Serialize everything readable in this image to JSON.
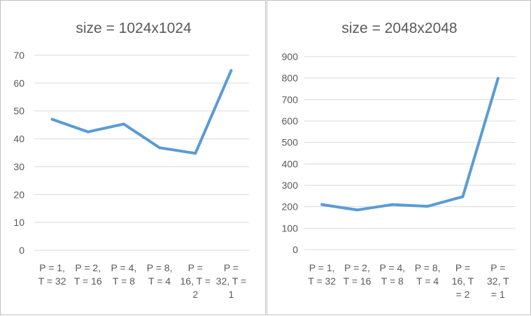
{
  "chart_data": [
    {
      "type": "line",
      "title": "size = 1024x1024",
      "categories": [
        [
          "P = 1,",
          "T = 32"
        ],
        [
          "P = 2,",
          "T = 16"
        ],
        [
          "P = 4,",
          "T = 8"
        ],
        [
          "P = 8,",
          "T = 4"
        ],
        [
          "P =",
          "16, T =",
          "2"
        ],
        [
          "P =",
          "32, T =",
          "1"
        ]
      ],
      "series": [
        {
          "values": [
            47,
            42.5,
            45.3,
            36.8,
            34.8,
            64.5
          ]
        }
      ],
      "ylim": [
        0,
        70
      ],
      "yticks": [
        0,
        10,
        20,
        30,
        40,
        50,
        60,
        70
      ],
      "grid": true,
      "color": "#5b9bd5"
    },
    {
      "type": "line",
      "title": "size = 2048x2048",
      "categories": [
        [
          "P = 1,",
          "T = 32"
        ],
        [
          "P = 2,",
          "T = 16"
        ],
        [
          "P = 4,",
          "T = 8"
        ],
        [
          "P = 8,",
          "T = 4"
        ],
        [
          "P =",
          "16, T",
          "= 2"
        ],
        [
          "P =",
          "32, T",
          "= 1"
        ]
      ],
      "series": [
        {
          "values": [
            210,
            185,
            210,
            202,
            247,
            798
          ]
        }
      ],
      "ylim": [
        0,
        900
      ],
      "yticks": [
        0,
        100,
        200,
        300,
        400,
        500,
        600,
        700,
        800,
        900
      ],
      "grid": true,
      "color": "#5b9bd5"
    }
  ]
}
